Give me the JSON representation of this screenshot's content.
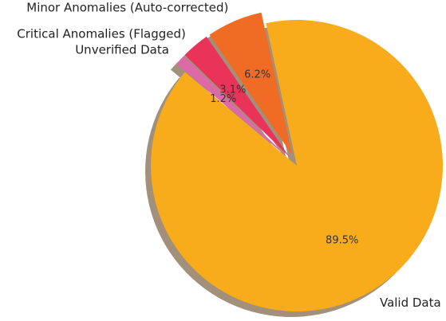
{
  "chart_data": {
    "type": "pie",
    "categories": [
      "Valid Data",
      "Minor Anomalies (Auto-corrected)",
      "Critical Anomalies (Flagged)",
      "Unverified Data"
    ],
    "values": [
      89.5,
      6.2,
      3.1,
      1.2
    ],
    "value_labels": [
      "89.5%",
      "6.2%",
      "3.1%",
      "1.2%"
    ],
    "colors": [
      "#f9ac1b",
      "#f06b24",
      "#ea3359",
      "#dc6aa6"
    ],
    "explode": [
      0,
      0.08,
      0.08,
      0.08
    ],
    "startangle": 140,
    "shadow": true
  }
}
